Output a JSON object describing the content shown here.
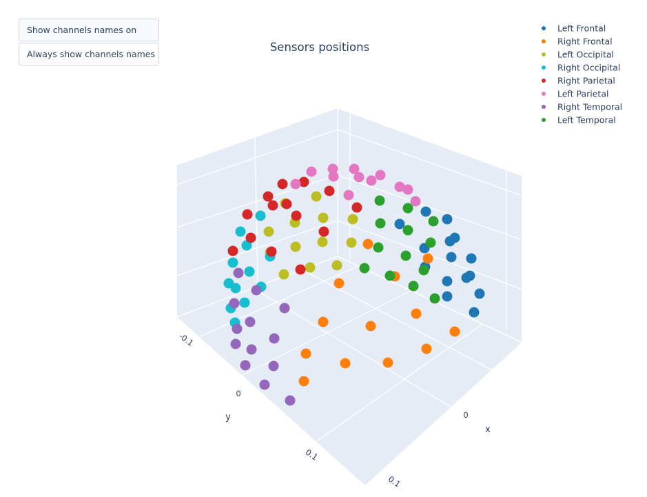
{
  "buttons": {
    "hover_label": "Show channels names on hover",
    "always_label": "Always show channels names"
  },
  "chart_data": {
    "type": "scatter",
    "title": "Sensors positions",
    "xlabel": "x",
    "ylabel": "y",
    "legend_position": "top-right",
    "x_ticks": [
      "0",
      "0.1"
    ],
    "y_ticks": [
      "-0.1",
      "0",
      "0.1"
    ],
    "series": [
      {
        "name": "Left Frontal",
        "color": "#1f77b4",
        "points": [
          [
            618,
            307
          ],
          [
            649,
            318
          ],
          [
            580,
            325
          ],
          [
            660,
            345
          ],
          [
            653,
            350
          ],
          [
            616,
            360
          ],
          [
            655,
            373
          ],
          [
            684,
            375
          ],
          [
            617,
            387
          ],
          [
            682,
            400
          ],
          [
            649,
            408
          ],
          [
            677,
            403
          ],
          [
            696,
            426
          ],
          [
            649,
            430
          ],
          [
            688,
            453
          ]
        ]
      },
      {
        "name": "Right Frontal",
        "color": "#ff7f0e",
        "points": [
          [
            534,
            354
          ],
          [
            621,
            375
          ],
          [
            573,
            401
          ],
          [
            492,
            411
          ],
          [
            604,
            455
          ],
          [
            469,
            467
          ],
          [
            538,
            473
          ],
          [
            660,
            481
          ],
          [
            619,
            506
          ],
          [
            444,
            513
          ],
          [
            501,
            527
          ],
          [
            563,
            526
          ],
          [
            441,
            553
          ]
        ]
      },
      {
        "name": "Left Occipital",
        "color": "#bcbd22",
        "points": [
          [
            414,
            295
          ],
          [
            459,
            285
          ],
          [
            428,
            323
          ],
          [
            469,
            316
          ],
          [
            512,
            318
          ],
          [
            390,
            336
          ],
          [
            429,
            358
          ],
          [
            468,
            351
          ],
          [
            510,
            352
          ],
          [
            392,
            366
          ],
          [
            450,
            388
          ],
          [
            489,
            385
          ],
          [
            412,
            398
          ]
        ]
      },
      {
        "name": "Right Occipital",
        "color": "#17becf",
        "points": [
          [
            378,
            313
          ],
          [
            349,
            336
          ],
          [
            358,
            356
          ],
          [
            392,
            372
          ],
          [
            338,
            381
          ],
          [
            362,
            394
          ],
          [
            332,
            411
          ],
          [
            342,
            418
          ],
          [
            379,
            416
          ],
          [
            355,
            439
          ],
          [
            335,
            447
          ],
          [
            341,
            468
          ]
        ]
      },
      {
        "name": "Right Parietal",
        "color": "#d62728",
        "points": [
          [
            410,
            267
          ],
          [
            441,
            264
          ],
          [
            478,
            277
          ],
          [
            389,
            285
          ],
          [
            396,
            298
          ],
          [
            416,
            296
          ],
          [
            518,
            301
          ],
          [
            359,
            311
          ],
          [
            430,
            313
          ],
          [
            364,
            345
          ],
          [
            470,
            336
          ],
          [
            394,
            365
          ],
          [
            338,
            364
          ],
          [
            436,
            391
          ]
        ]
      },
      {
        "name": "Left Parietal",
        "color": "#e377c2",
        "points": [
          [
            452,
            249
          ],
          [
            483,
            245
          ],
          [
            514,
            245
          ],
          [
            484,
            256
          ],
          [
            521,
            257
          ],
          [
            552,
            254
          ],
          [
            539,
            262
          ],
          [
            429,
            267
          ],
          [
            506,
            283
          ],
          [
            580,
            271
          ],
          [
            592,
            275
          ],
          [
            603,
            292
          ]
        ]
      },
      {
        "name": "Right Temporal",
        "color": "#9467bd",
        "points": [
          [
            346,
            396
          ],
          [
            372,
            421
          ],
          [
            340,
            440
          ],
          [
            413,
            447
          ],
          [
            363,
            467
          ],
          [
            344,
            477
          ],
          [
            398,
            491
          ],
          [
            342,
            499
          ],
          [
            365,
            507
          ],
          [
            356,
            530
          ],
          [
            397,
            531
          ],
          [
            384,
            558
          ],
          [
            421,
            581
          ]
        ]
      },
      {
        "name": "Left Temporal",
        "color": "#2ca02c",
        "points": [
          [
            551,
            291
          ],
          [
            592,
            302
          ],
          [
            629,
            321
          ],
          [
            552,
            324
          ],
          [
            592,
            334
          ],
          [
            625,
            352
          ],
          [
            549,
            359
          ],
          [
            589,
            371
          ],
          [
            529,
            389
          ],
          [
            566,
            400
          ],
          [
            615,
            392
          ],
          [
            600,
            415
          ],
          [
            631,
            433
          ]
        ]
      }
    ]
  }
}
